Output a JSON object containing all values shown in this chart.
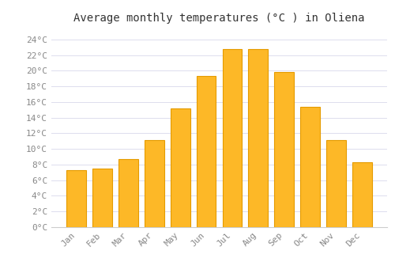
{
  "title": "Average monthly temperatures (°C ) in Oliena",
  "months": [
    "Jan",
    "Feb",
    "Mar",
    "Apr",
    "May",
    "Jun",
    "Jul",
    "Aug",
    "Sep",
    "Oct",
    "Nov",
    "Dec"
  ],
  "temperatures": [
    7.3,
    7.5,
    8.7,
    11.1,
    15.2,
    19.3,
    22.8,
    22.8,
    19.8,
    15.4,
    11.1,
    8.3
  ],
  "bar_color": "#FDB827",
  "bar_edge_color": "#E59B00",
  "background_color": "#FFFFFF",
  "grid_color": "#DDDDEE",
  "yticks": [
    0,
    2,
    4,
    6,
    8,
    10,
    12,
    14,
    16,
    18,
    20,
    22,
    24
  ],
  "ylim": [
    0,
    25.5
  ],
  "title_fontsize": 10,
  "tick_fontsize": 8,
  "title_font_family": "monospace",
  "tick_font_family": "monospace"
}
